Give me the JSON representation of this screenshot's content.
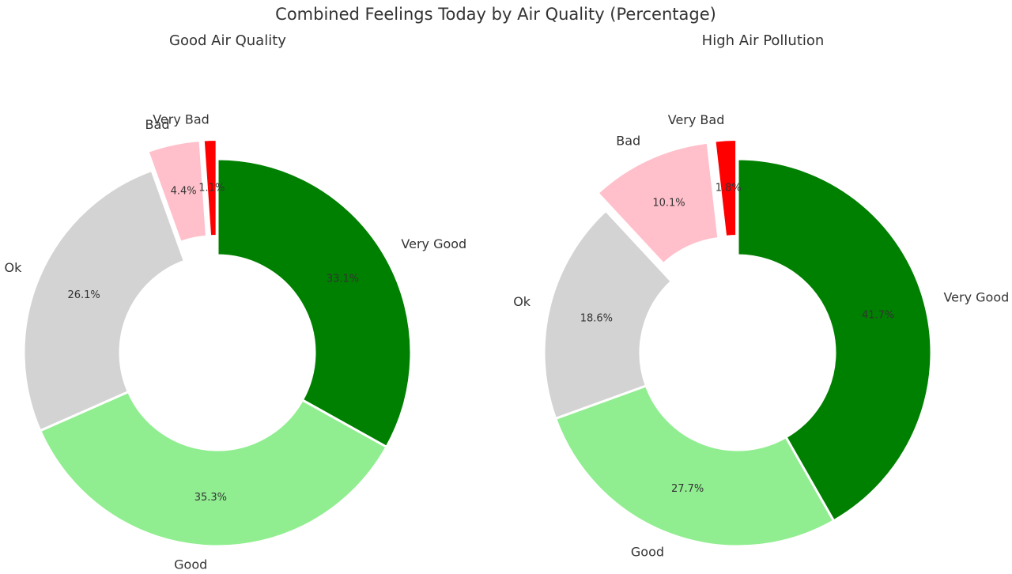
{
  "figure": {
    "title": "Combined Feelings Today by Air Quality (Percentage)"
  },
  "chart_data": [
    {
      "type": "pie",
      "style": "donut",
      "title": "Good Air Quality",
      "labels": [
        "Very Good",
        "Good",
        "Ok",
        "Bad",
        "Very Bad"
      ],
      "values": [
        33.1,
        35.3,
        26.1,
        4.4,
        1.1
      ],
      "value_labels": [
        "33.1%",
        "35.3%",
        "26.1%",
        "4.4%",
        "1.1%"
      ],
      "exploded": [
        "Bad",
        "Very Bad"
      ],
      "start": "top",
      "direction": "clockwise",
      "colors": [
        "#008000",
        "#90EE90",
        "#D3D3D3",
        "#FFC0CB",
        "#FF0000"
      ]
    },
    {
      "type": "pie",
      "style": "donut",
      "title": "High Air Pollution",
      "labels": [
        "Very Good",
        "Good",
        "Ok",
        "Bad",
        "Very Bad"
      ],
      "values": [
        41.7,
        27.7,
        18.6,
        10.1,
        1.8
      ],
      "value_labels": [
        "41.7%",
        "27.7%",
        "18.6%",
        "10.1%",
        "1.8%"
      ],
      "exploded": [
        "Bad",
        "Very Bad"
      ],
      "start": "top",
      "direction": "clockwise",
      "colors": [
        "#008000",
        "#90EE90",
        "#D3D3D3",
        "#FFC0CB",
        "#FF0000"
      ]
    }
  ]
}
